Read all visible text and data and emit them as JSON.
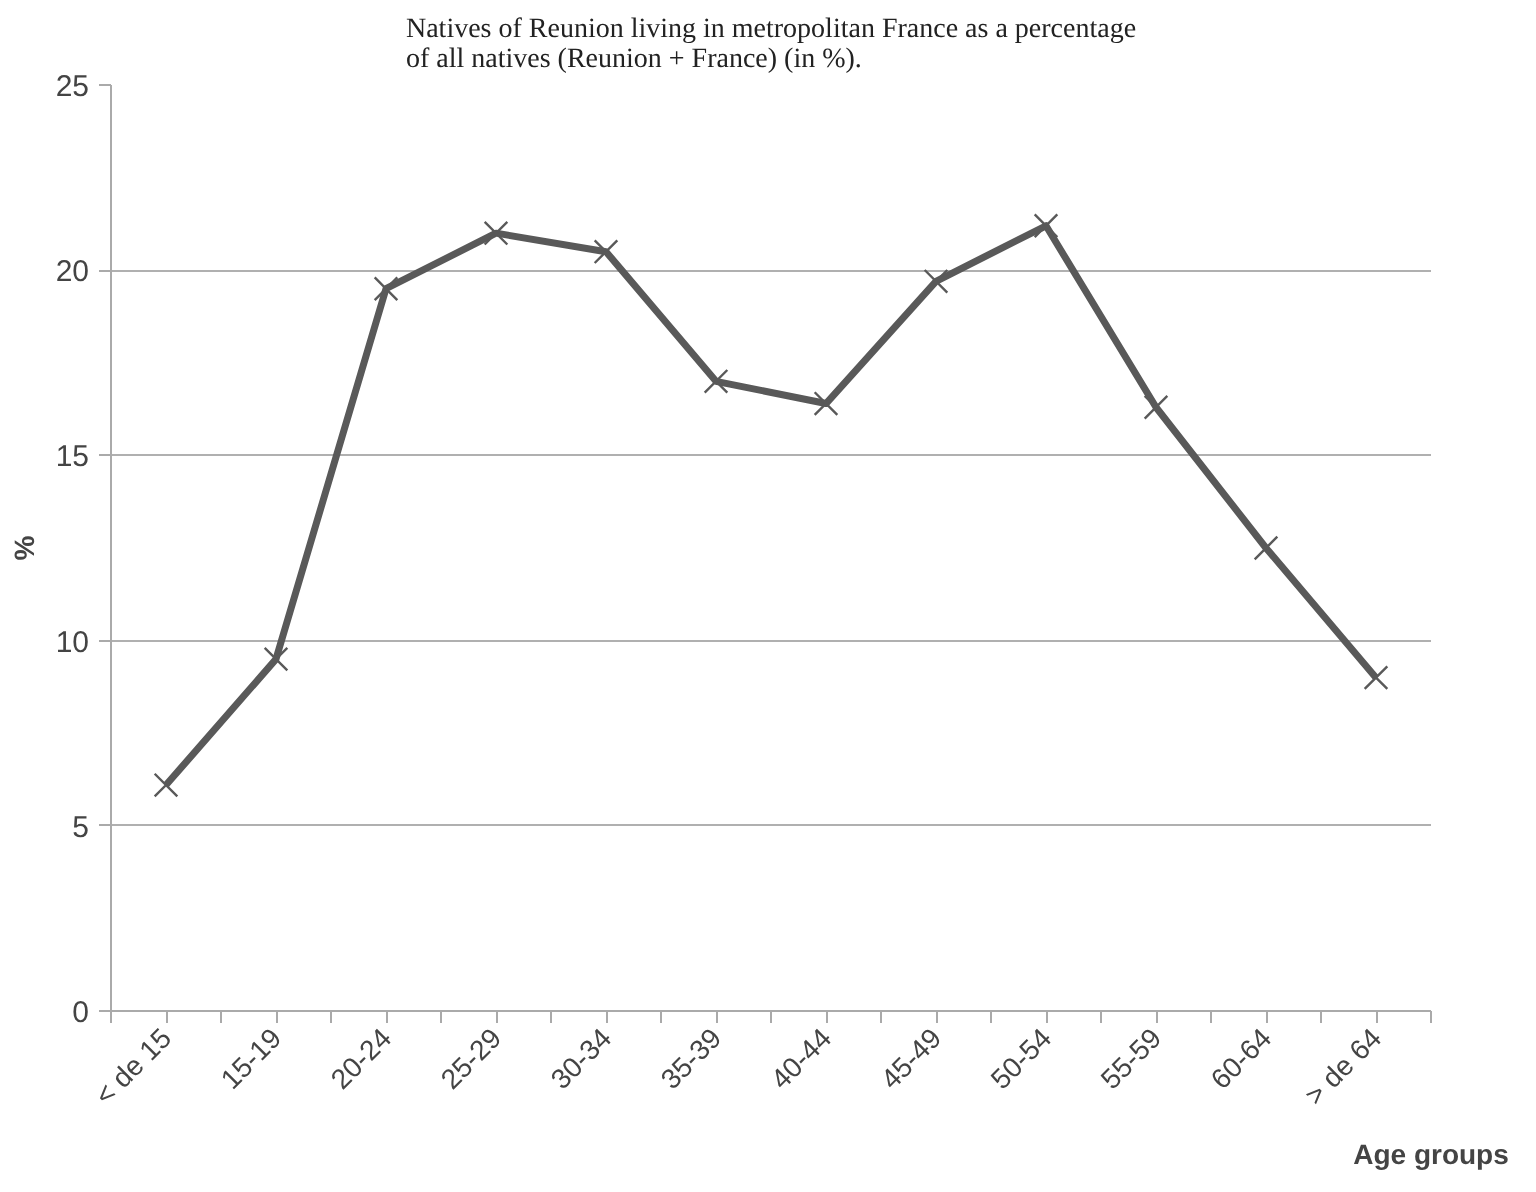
{
  "chart_data": {
    "type": "line",
    "title": "Natives of Reunion living in metropolitan France as a percentage\nof all natives (Reunion + France) (in %).",
    "xlabel": "Age groups",
    "ylabel": "%",
    "categories": [
      "< de 15",
      "15-19",
      "20-24",
      "25-29",
      "30-34",
      "35-39",
      "40-44",
      "45-49",
      "50-54",
      "55-59",
      "60-64",
      "> de 64"
    ],
    "series": [
      {
        "color": "#595959",
        "values": [
          6.1,
          9.5,
          19.5,
          21.0,
          20.5,
          17.0,
          16.4,
          19.7,
          21.2,
          16.3,
          12.5,
          9.0
        ]
      }
    ],
    "ylim": [
      0,
      25
    ],
    "yticks": [
      0,
      5,
      10,
      15,
      20,
      25
    ],
    "grid": "y",
    "marker": "cross",
    "line_style": "solid"
  }
}
